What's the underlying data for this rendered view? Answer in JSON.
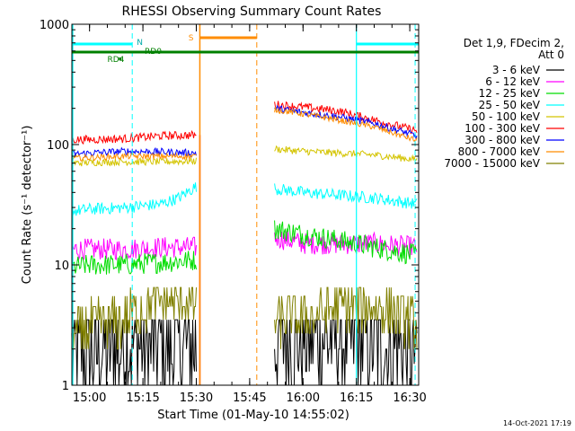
{
  "chart_data": {
    "type": "line",
    "title": "RHESSI Observing Summary Count Rates",
    "xlabel": "Start Time (01-May-10 14:55:02)",
    "ylabel": "Count Rate (s⁻¹ detector⁻¹)",
    "y_scale": "log",
    "ylim": [
      1,
      1000
    ],
    "x_time_range": [
      "14:55:02",
      "16:32:30"
    ],
    "x_tick_labels": [
      "15:00",
      "15:15",
      "15:30",
      "15:45",
      "16:00",
      "16:15",
      "16:30"
    ],
    "y_tick_labels": [
      "1",
      "10",
      "100",
      "1000"
    ],
    "legend_title": [
      "Det 1,9, FDecim 2,",
      "Att 0"
    ],
    "legend_position": "right",
    "gap": [
      "15:31:00",
      "15:52:00"
    ],
    "series": [
      {
        "name": "3 - 6 keV",
        "color": "#000000",
        "segment1": {
          "time": [
            "14:55",
            "15:00",
            "15:10",
            "15:20",
            "15:30"
          ],
          "values": [
            1.8,
            1.8,
            2.2,
            2.0,
            2.0
          ]
        },
        "segment2": {
          "time": [
            "15:52",
            "16:00",
            "16:10",
            "16:20",
            "16:32"
          ],
          "values": [
            2.5,
            2.5,
            2.5,
            2.3,
            1.9
          ]
        }
      },
      {
        "name": "6 - 12 keV",
        "color": "#ff00ff",
        "segment1": {
          "time": [
            "14:55",
            "15:00",
            "15:10",
            "15:20",
            "15:30"
          ],
          "values": [
            13.5,
            13.5,
            13.5,
            14,
            14
          ]
        },
        "segment2": {
          "time": [
            "15:52",
            "16:00",
            "16:10",
            "16:20",
            "16:32"
          ],
          "values": [
            17,
            15,
            15,
            15,
            14
          ]
        }
      },
      {
        "name": "12 - 25 keV",
        "color": "#00dd00",
        "segment1": {
          "time": [
            "14:55",
            "15:00",
            "15:10",
            "15:20",
            "15:30"
          ],
          "values": [
            9.5,
            10,
            10,
            10.5,
            11
          ]
        },
        "segment2": {
          "time": [
            "15:52",
            "16:00",
            "16:10",
            "16:20",
            "16:32"
          ],
          "values": [
            20,
            18,
            16,
            14,
            12
          ]
        }
      },
      {
        "name": "25 - 50 keV",
        "color": "#00ffff",
        "segment1": {
          "time": [
            "14:55",
            "15:00",
            "15:10",
            "15:20",
            "15:25",
            "15:30"
          ],
          "values": [
            28,
            29,
            30,
            32,
            36,
            45
          ]
        },
        "segment2": {
          "time": [
            "15:52",
            "16:00",
            "16:10",
            "16:20",
            "16:32"
          ],
          "values": [
            43,
            40,
            38,
            36,
            32
          ]
        }
      },
      {
        "name": "50 - 100 keV",
        "color": "#d4c400",
        "segment1": {
          "time": [
            "14:55",
            "15:00",
            "15:10",
            "15:20",
            "15:30"
          ],
          "values": [
            70,
            71,
            72,
            72,
            73
          ]
        },
        "segment2": {
          "time": [
            "15:52",
            "16:00",
            "16:10",
            "16:20",
            "16:32"
          ],
          "values": [
            92,
            88,
            85,
            82,
            75
          ]
        }
      },
      {
        "name": "100 - 300 keV",
        "color": "#ff0000",
        "segment1": {
          "time": [
            "14:55",
            "15:00",
            "15:10",
            "15:20",
            "15:30"
          ],
          "values": [
            110,
            110,
            112,
            118,
            120
          ]
        },
        "segment2": {
          "time": [
            "15:52",
            "16:00",
            "16:10",
            "16:20",
            "16:32"
          ],
          "values": [
            215,
            205,
            190,
            160,
            130
          ]
        }
      },
      {
        "name": "300 - 800 keV",
        "color": "#0000ff",
        "segment1": {
          "time": [
            "14:55",
            "15:00",
            "15:10",
            "15:20",
            "15:30"
          ],
          "values": [
            83,
            85,
            88,
            87,
            85
          ]
        },
        "segment2": {
          "time": [
            "15:52",
            "16:00",
            "16:10",
            "16:20",
            "16:32"
          ],
          "values": [
            200,
            185,
            170,
            150,
            118
          ]
        }
      },
      {
        "name": "800 - 7000 keV",
        "color": "#ff8c00",
        "segment1": {
          "time": [
            "14:55",
            "15:00",
            "15:10",
            "15:20",
            "15:30"
          ],
          "values": [
            77,
            78,
            80,
            80,
            80
          ]
        },
        "segment2": {
          "time": [
            "15:52",
            "16:00",
            "16:10",
            "16:20",
            "16:32"
          ],
          "values": [
            195,
            180,
            160,
            140,
            108
          ]
        }
      },
      {
        "name": "7000 - 15000 keV",
        "color": "#808000",
        "segment1": {
          "time": [
            "14:55",
            "15:00",
            "15:10",
            "15:15",
            "15:20",
            "15:30"
          ],
          "values": [
            2.7,
            3.0,
            3.5,
            4.5,
            5.0,
            4.8
          ]
        },
        "segment2": {
          "time": [
            "15:52",
            "16:00",
            "16:10",
            "16:20",
            "16:32"
          ],
          "values": [
            3.5,
            3.6,
            4.5,
            4.5,
            3.2
          ]
        }
      }
    ],
    "annotations": [
      {
        "text": "N",
        "color": "#00aaaa",
        "time": "15:12"
      },
      {
        "text": "S",
        "color": "#ff8c00",
        "time": "15:30"
      },
      {
        "text": "RD0",
        "color": "#008000",
        "time": "15:14"
      },
      {
        "text": "RD4",
        "color": "#008000",
        "time": "15:08"
      }
    ]
  },
  "footer": {
    "timestamp": "14-Oct-2021 17:19"
  }
}
